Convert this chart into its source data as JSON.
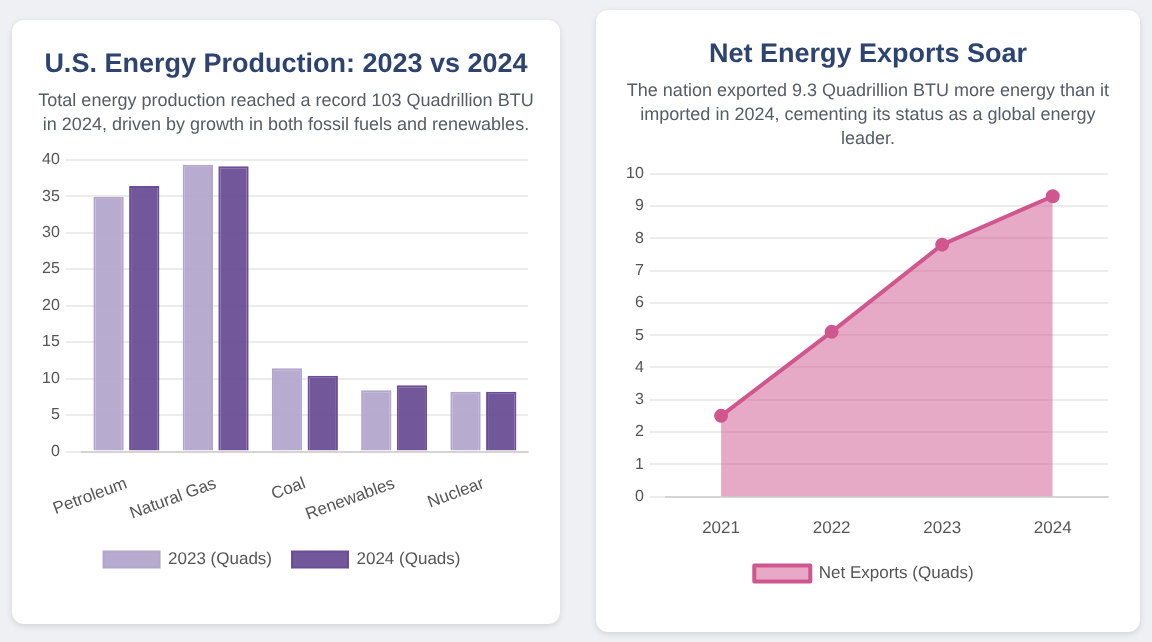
{
  "chart_data": [
    {
      "type": "bar",
      "title": "U.S. Energy Production: 2023 vs 2024",
      "subtitle": "Total energy production reached a record 103 Quadrillion BTU in 2024, driven by growth in both fossil fuels and renewables.",
      "categories": [
        "Petroleum",
        "Natural Gas",
        "Coal",
        "Renewables",
        "Nuclear"
      ],
      "series": [
        {
          "name": "2023 (Quads)",
          "color": "#b3a6cc",
          "values": [
            34.9,
            39.3,
            11.4,
            8.4,
            8.2
          ]
        },
        {
          "name": "2024 (Quads)",
          "color": "#6a4f96",
          "values": [
            36.4,
            39.1,
            10.4,
            9.1,
            8.2
          ]
        }
      ],
      "ylim": [
        0,
        40
      ],
      "yticks": [
        0,
        5,
        10,
        15,
        20,
        25,
        30,
        35,
        40
      ],
      "grid": "y",
      "legend": "bottom"
    },
    {
      "type": "area",
      "title": "Net Energy Exports Soar",
      "subtitle": "The nation exported 9.3 Quadrillion BTU more energy than it imported in 2024, cementing its status as a global energy leader.",
      "categories": [
        "2021",
        "2022",
        "2023",
        "2024"
      ],
      "series": [
        {
          "name": "Net Exports (Quads)",
          "color": "#d0568e",
          "values": [
            2.5,
            5.1,
            7.8,
            9.3
          ]
        }
      ],
      "ylim": [
        0,
        10
      ],
      "yticks": [
        0,
        1,
        2,
        3,
        4,
        5,
        6,
        7,
        8,
        9,
        10
      ],
      "grid": "y",
      "legend": "bottom",
      "marker": "circle"
    }
  ]
}
